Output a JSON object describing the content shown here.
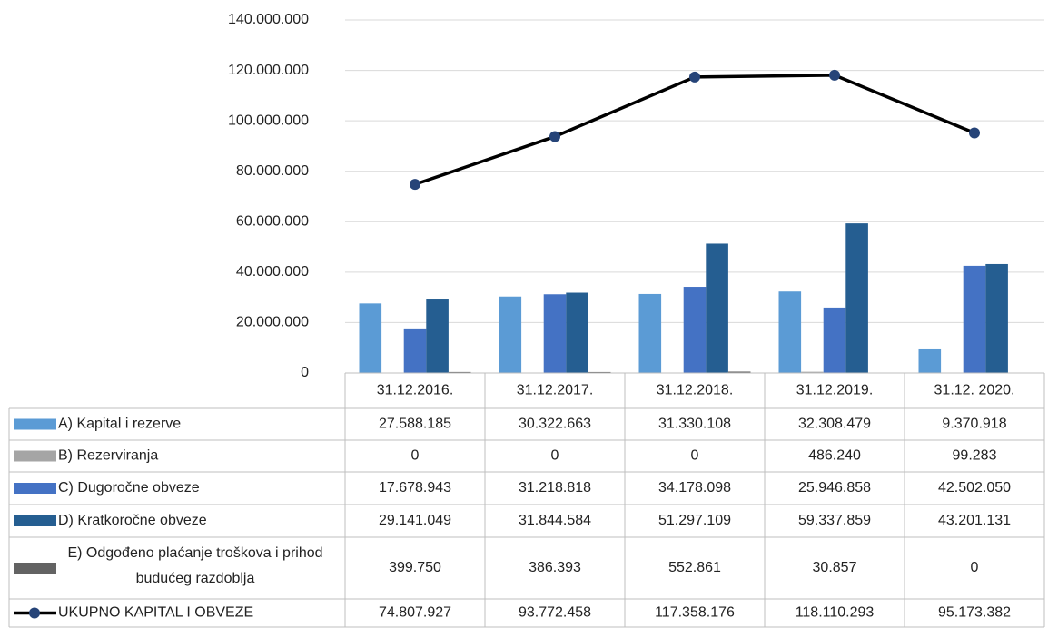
{
  "chart_data": {
    "type": "bar",
    "categories": [
      "31.12.2016.",
      "31.12.2017.",
      "31.12.2018.",
      "31.12.2019.",
      "31.12. 2020."
    ],
    "series": [
      {
        "name": "A) Kapital i rezerve",
        "color": "#5b9bd5",
        "values": [
          27588185,
          30322663,
          31330108,
          32308479,
          9370918
        ],
        "value_labels": [
          "27.588.185",
          "30.322.663",
          "31.330.108",
          "32.308.479",
          "9.370.918"
        ]
      },
      {
        "name": "B) Rezerviranja",
        "color": "#a5a5a5",
        "values": [
          0,
          0,
          0,
          486240,
          99283
        ],
        "value_labels": [
          "0",
          "0",
          "0",
          "486.240",
          "99.283"
        ]
      },
      {
        "name": "C) Dugoročne obveze",
        "color": "#4472c4",
        "values": [
          17678943,
          31218818,
          34178098,
          25946858,
          42502050
        ],
        "value_labels": [
          "17.678.943",
          "31.218.818",
          "34.178.098",
          "25.946.858",
          "42.502.050"
        ]
      },
      {
        "name": "D) Kratkoročne obveze",
        "color": "#255e91",
        "values": [
          29141049,
          31844584,
          51297109,
          59337859,
          43201131
        ],
        "value_labels": [
          "29.141.049",
          "31.844.584",
          "51.297.109",
          "59.337.859",
          "43.201.131"
        ]
      },
      {
        "name": "E) Odgođeno plaćanje troškova i prihod budućeg razdoblja",
        "color": "#636363",
        "values": [
          399750,
          386393,
          552861,
          30857,
          0
        ],
        "value_labels": [
          "399.750",
          "386.393",
          "552.861",
          "30.857",
          "0"
        ]
      },
      {
        "name": "UKUPNO KAPITAL I OBVEZE",
        "type": "line",
        "color": "#000000",
        "marker_color": "#264478",
        "values": [
          74807927,
          93772458,
          117358176,
          118110293,
          95173382
        ],
        "value_labels": [
          "74.807.927",
          "93.772.458",
          "117.358.176",
          "118.110.293",
          "95.173.382"
        ]
      }
    ],
    "ylim": [
      0,
      140000000
    ],
    "yticks": [
      0,
      {
        "value": 20000000,
        "label": "20.000.000"
      },
      {
        "value": 40000000,
        "label": "40.000.000"
      },
      {
        "value": 60000000,
        "label": "60.000.000"
      },
      {
        "value": 80000000,
        "label": "80.000.000"
      },
      {
        "value": 100000000,
        "label": "100.000.000"
      },
      {
        "value": 120000000,
        "label": "120.000.000"
      },
      {
        "value": 140000000,
        "label": "140.000.000"
      }
    ],
    "grid": true
  }
}
